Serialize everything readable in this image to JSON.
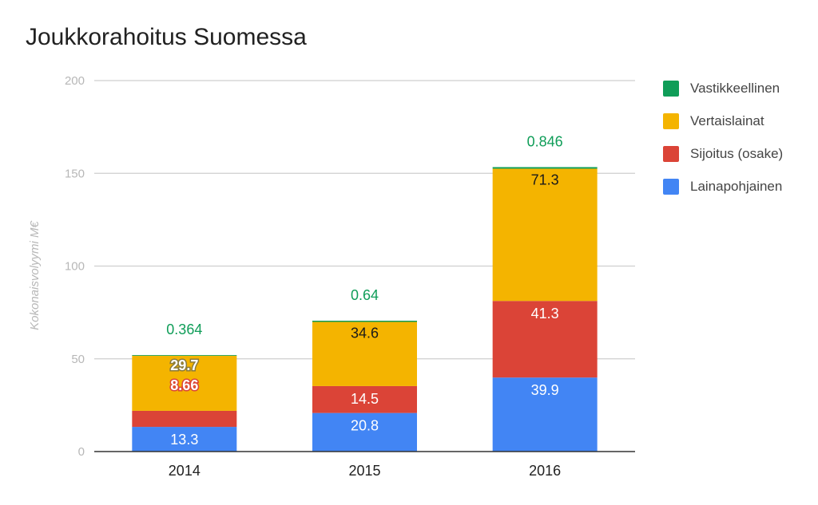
{
  "chart_data": {
    "type": "bar",
    "stacked": true,
    "title": "Joukkorahoitus Suomessa",
    "xlabel": "",
    "ylabel": "Kokonaisvolyymi M€",
    "ylim": [
      0,
      200
    ],
    "yticks": [
      "0",
      "50",
      "100",
      "150",
      "200"
    ],
    "categories": [
      "2014",
      "2015",
      "2016"
    ],
    "grid": true,
    "legend_position": "right",
    "series": [
      {
        "name": "Lainapohjainen",
        "color": "#4285F4",
        "values": [
          13.3,
          20.8,
          39.9
        ],
        "labels": [
          "13.3",
          "20.8",
          "39.9"
        ]
      },
      {
        "name": "Sijoitus (osake)",
        "color": "#DB4437",
        "values": [
          8.66,
          14.5,
          41.3
        ],
        "labels": [
          "8.66",
          "14.5",
          "41.3"
        ]
      },
      {
        "name": "Vertaislainat",
        "color": "#F4B400",
        "values": [
          29.7,
          34.6,
          71.3
        ],
        "labels": [
          "29.7",
          "34.6",
          "71.3"
        ]
      },
      {
        "name": "Vastikkeellinen",
        "color": "#0F9D58",
        "values": [
          0.364,
          0.64,
          0.846
        ],
        "labels": [
          "0.364",
          "0.64",
          "0.846"
        ]
      }
    ]
  }
}
